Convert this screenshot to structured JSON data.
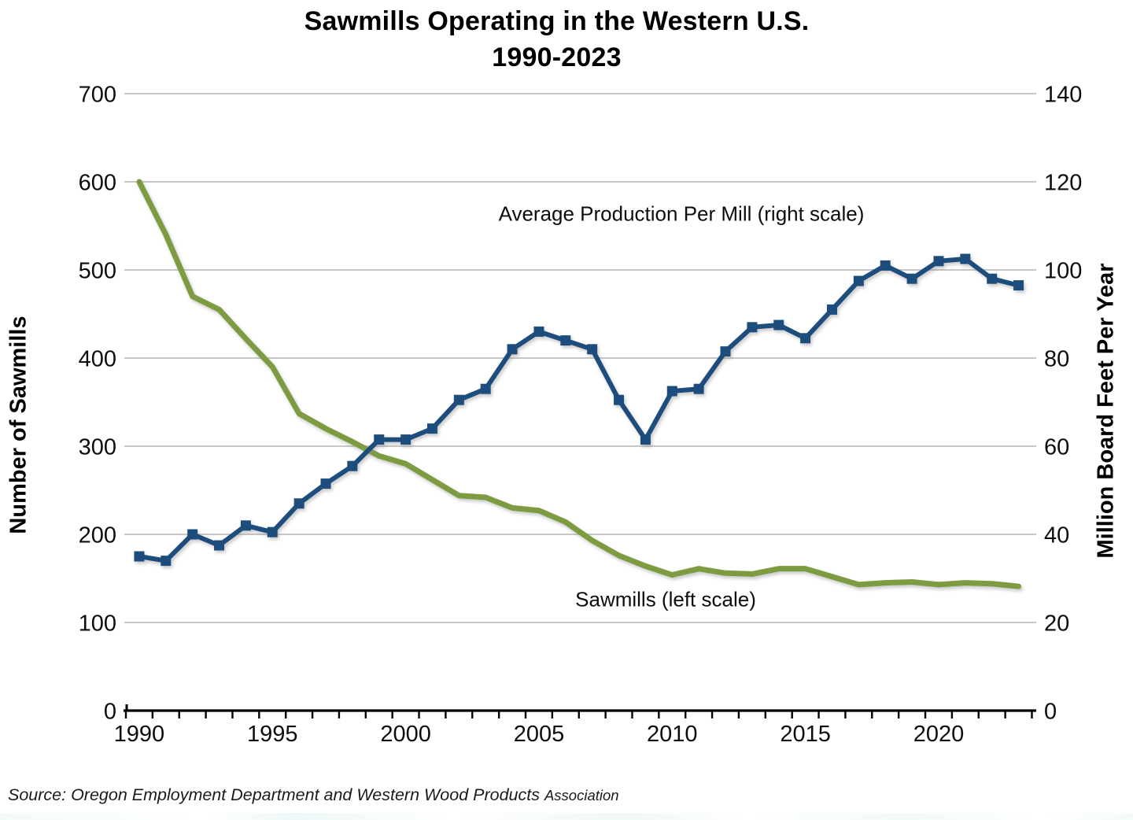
{
  "title": {
    "line1": "Sawmills Operating in the Western U.S.",
    "line2": "1990-2023"
  },
  "annotations": {
    "production_label": "Average Production Per Mill (right scale)",
    "sawmills_label": "Sawmills (left scale)"
  },
  "source": {
    "main": "Source: Oregon Employment Department and Western Wood Products ",
    "suffix": "Association"
  },
  "colors": {
    "sawmills_line": "#7D9C42",
    "production_line": "#1F4E7B",
    "gridline": "#C6C6C6",
    "axis": "#000000",
    "tick_label": "#0d0d0d"
  },
  "chart_data": {
    "type": "line",
    "title": "Sawmills Operating in the Western U.S. 1990-2023",
    "x": [
      1990,
      1991,
      1992,
      1993,
      1994,
      1995,
      1996,
      1997,
      1998,
      1999,
      2000,
      2001,
      2002,
      2003,
      2004,
      2005,
      2006,
      2007,
      2008,
      2009,
      2010,
      2011,
      2012,
      2013,
      2014,
      2015,
      2016,
      2017,
      2018,
      2019,
      2020,
      2021,
      2022,
      2023
    ],
    "series": [
      {
        "name": "Sawmills (left scale)",
        "axis": "left",
        "style": "line",
        "color": "#7D9C42",
        "values": [
          600,
          540,
          470,
          455,
          422,
          390,
          337,
          320,
          305,
          289,
          280,
          262,
          244,
          242,
          230,
          227,
          214,
          193,
          176,
          164,
          154,
          161,
          156,
          155,
          161,
          161,
          152,
          143,
          145,
          146,
          143,
          145,
          144,
          141
        ]
      },
      {
        "name": "Average Production Per Mill (right scale)",
        "axis": "right",
        "style": "line-square-markers",
        "color": "#1F4E7B",
        "values": [
          35,
          34,
          40,
          37.5,
          42,
          40.5,
          47,
          51.5,
          55.5,
          61.5,
          61.5,
          64,
          70.5,
          73,
          82,
          86,
          84,
          82,
          70.5,
          61.5,
          72.5,
          73,
          81.5,
          87,
          87.5,
          84.5,
          91,
          97.5,
          101,
          98,
          102,
          102.5,
          98,
          96.5
        ]
      }
    ],
    "left_axis": {
      "label": "Number of Sawmills",
      "min": 0,
      "max": 700,
      "ticks": [
        0,
        100,
        200,
        300,
        400,
        500,
        600,
        700
      ]
    },
    "right_axis": {
      "label": "Million Board Feet Per Year",
      "min": 0,
      "max": 140,
      "ticks": [
        0,
        20,
        40,
        60,
        80,
        100,
        120,
        140
      ]
    },
    "x_axis": {
      "range": [
        1990,
        2023
      ],
      "tick_labels": [
        1990,
        1995,
        2000,
        2005,
        2010,
        2015,
        2020
      ],
      "minor_ticks_every_year": true
    },
    "grid": "horizontal",
    "legend_position": "in-plot-text-labels"
  }
}
